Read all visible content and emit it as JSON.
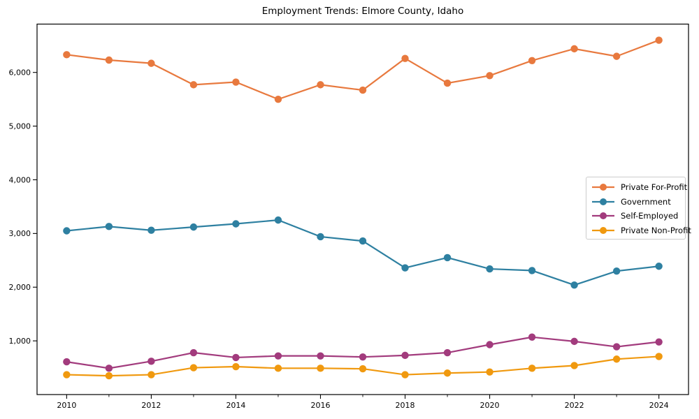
{
  "chart_data": {
    "type": "line",
    "title": "Employment Trends: Elmore County, Idaho",
    "xlabel": "",
    "ylabel": "",
    "grid": false,
    "legend_position": "center right",
    "marker": "circle",
    "x": [
      2010,
      2011,
      2012,
      2013,
      2014,
      2015,
      2016,
      2017,
      2018,
      2019,
      2020,
      2021,
      2022,
      2023,
      2024
    ],
    "series": [
      {
        "name": "Private For-Profit",
        "color": "#E8793E",
        "values": [
          6330,
          6230,
          6170,
          5770,
          5820,
          5500,
          5770,
          5670,
          6260,
          5800,
          5940,
          6220,
          6440,
          6300,
          6600
        ]
      },
      {
        "name": "Government",
        "color": "#2E80A1",
        "values": [
          3050,
          3130,
          3060,
          3120,
          3180,
          3250,
          2940,
          2860,
          2360,
          2550,
          2340,
          2310,
          2040,
          2300,
          2390
        ]
      },
      {
        "name": "Self-Employed",
        "color": "#A23B7D",
        "values": [
          610,
          490,
          620,
          780,
          690,
          720,
          720,
          700,
          730,
          780,
          930,
          1070,
          990,
          890,
          980
        ]
      },
      {
        "name": "Private Non-Profit",
        "color": "#F0990F",
        "values": [
          370,
          350,
          370,
          500,
          520,
          490,
          490,
          480,
          370,
          400,
          420,
          490,
          540,
          660,
          710
        ]
      }
    ],
    "xlim": [
      2009.3,
      2024.7
    ],
    "ylim": [
      0,
      6900
    ],
    "yticks": {
      "values": [
        1000,
        2000,
        3000,
        4000,
        5000,
        6000
      ],
      "labels": [
        "1,000",
        "2,000",
        "3,000",
        "4,000",
        "5,000",
        "6,000"
      ]
    },
    "xticks": {
      "major": [
        2010,
        2012,
        2014,
        2016,
        2018,
        2020,
        2022,
        2024
      ],
      "minor": [
        2011,
        2013,
        2015,
        2017,
        2019,
        2021,
        2023
      ]
    }
  }
}
